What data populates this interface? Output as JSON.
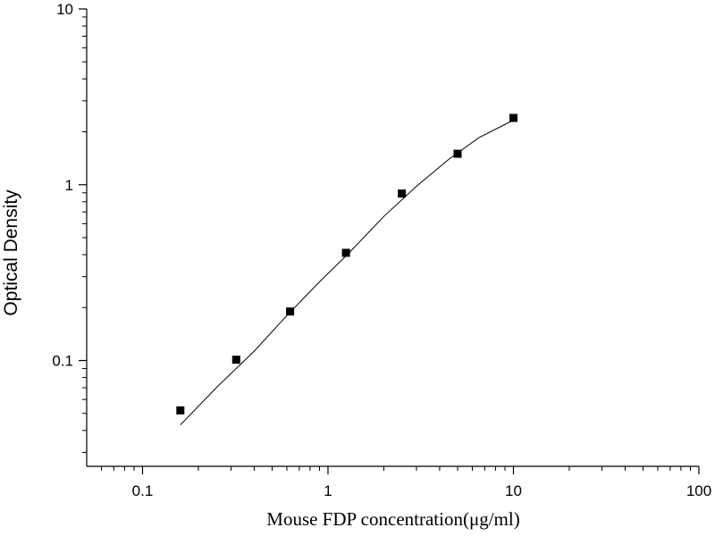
{
  "chart_data": {
    "type": "scatter",
    "xlabel": "Mouse FDP concentration(μg/ml)",
    "ylabel": "Optical Density",
    "x_scale": "log",
    "y_scale": "log",
    "xlim": [
      0.05,
      100
    ],
    "ylim": [
      0.025,
      10
    ],
    "x_ticks": [
      {
        "value": 0.1,
        "label": "0.1"
      },
      {
        "value": 1,
        "label": "1"
      },
      {
        "value": 10,
        "label": "10"
      },
      {
        "value": 100,
        "label": "100"
      }
    ],
    "y_ticks": [
      {
        "value": 0.1,
        "label": "0.1"
      },
      {
        "value": 1,
        "label": "1"
      },
      {
        "value": 10,
        "label": "10"
      }
    ],
    "grid": false,
    "legend": "none",
    "series": [
      {
        "kind": "points",
        "marker": "square",
        "color": "#000000",
        "x": [
          0.16,
          0.32,
          0.625,
          1.25,
          2.5,
          5,
          10
        ],
        "y": [
          0.052,
          0.101,
          0.19,
          0.41,
          0.89,
          1.5,
          2.4
        ]
      },
      {
        "kind": "fit-curve",
        "color": "#000000",
        "x": [
          0.16,
          0.25,
          0.4,
          0.6,
          0.9,
          1.3,
          2,
          3,
          4.5,
          6.5,
          10
        ],
        "y": [
          0.043,
          0.07,
          0.113,
          0.18,
          0.28,
          0.41,
          0.66,
          0.98,
          1.4,
          1.85,
          2.33
        ]
      }
    ]
  }
}
